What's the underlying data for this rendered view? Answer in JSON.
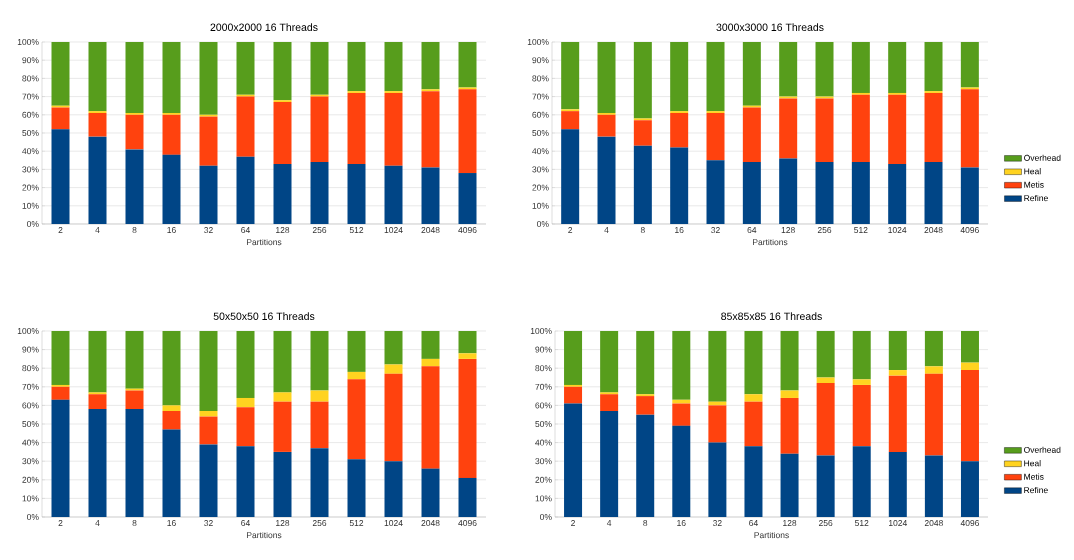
{
  "chart_data": [
    {
      "type": "bar",
      "stacked": true,
      "title": "2000x2000 16 Threads",
      "xlabel": "Partitions",
      "categories": [
        "2",
        "4",
        "8",
        "16",
        "32",
        "64",
        "128",
        "256",
        "512",
        "1024",
        "2048",
        "4096"
      ],
      "ylim": [
        0,
        100
      ],
      "yticks": [
        {
          "value": 0,
          "label": "0%"
        },
        {
          "value": 10,
          "label": "10%"
        },
        {
          "value": 20,
          "label": "20%"
        },
        {
          "value": 30,
          "label": "30%"
        },
        {
          "value": 40,
          "label": "40%"
        },
        {
          "value": 50,
          "label": "50%"
        },
        {
          "value": 60,
          "label": "60%"
        },
        {
          "value": 70,
          "label": "70%"
        },
        {
          "value": 80,
          "label": "80%"
        },
        {
          "value": 90,
          "label": "90%"
        },
        {
          "value": 100,
          "label": "100%"
        }
      ],
      "grid": "y",
      "series": [
        {
          "color": "#004586",
          "values": [
            52,
            48,
            41,
            38,
            32,
            37,
            33,
            34,
            33,
            32,
            31,
            28
          ]
        },
        {
          "color": "#ff420e",
          "values": [
            12,
            13,
            19,
            22,
            27,
            33,
            34,
            36,
            39,
            40,
            42,
            46
          ]
        },
        {
          "color": "#ffd320",
          "values": [
            1,
            1,
            1,
            1,
            1,
            1,
            1,
            1,
            1,
            1,
            1,
            1
          ]
        },
        {
          "color": "#579d1c",
          "values": [
            35,
            38,
            39,
            39,
            40,
            29,
            32,
            29,
            27,
            27,
            26,
            25
          ]
        }
      ]
    },
    {
      "type": "bar",
      "stacked": true,
      "title": "3000x3000 16 Threads",
      "xlabel": "Partitions",
      "categories": [
        "2",
        "4",
        "8",
        "16",
        "32",
        "64",
        "128",
        "256",
        "512",
        "1024",
        "2048",
        "4096"
      ],
      "ylim": [
        0,
        100
      ],
      "yticks": [
        {
          "value": 0,
          "label": "0%"
        },
        {
          "value": 10,
          "label": "10%"
        },
        {
          "value": 20,
          "label": "20%"
        },
        {
          "value": 30,
          "label": "30%"
        },
        {
          "value": 40,
          "label": "40%"
        },
        {
          "value": 50,
          "label": "50%"
        },
        {
          "value": 60,
          "label": "60%"
        },
        {
          "value": 70,
          "label": "70%"
        },
        {
          "value": 80,
          "label": "80%"
        },
        {
          "value": 90,
          "label": "90%"
        },
        {
          "value": 100,
          "label": "100%"
        }
      ],
      "grid": "y",
      "legend": "right",
      "series": [
        {
          "name": "Refine",
          "color": "#004586",
          "values": [
            52,
            48,
            43,
            42,
            35,
            34,
            36,
            34,
            34,
            33,
            34,
            31
          ]
        },
        {
          "name": "Metis",
          "color": "#ff420e",
          "values": [
            10,
            12,
            14,
            19,
            26,
            30,
            33,
            35,
            37,
            38,
            38,
            43
          ]
        },
        {
          "name": "Heal",
          "color": "#ffd320",
          "values": [
            1,
            1,
            1,
            1,
            1,
            1,
            1,
            1,
            1,
            1,
            1,
            1
          ]
        },
        {
          "name": "Overhead",
          "color": "#579d1c",
          "values": [
            37,
            39,
            42,
            38,
            38,
            35,
            30,
            30,
            28,
            28,
            27,
            25
          ]
        }
      ]
    },
    {
      "type": "bar",
      "stacked": true,
      "title": "50x50x50 16 Threads",
      "xlabel": "Partitions",
      "categories": [
        "2",
        "4",
        "8",
        "16",
        "32",
        "64",
        "128",
        "256",
        "512",
        "1024",
        "2048",
        "4096"
      ],
      "ylim": [
        0,
        100
      ],
      "yticks": [
        {
          "value": 0,
          "label": "0%"
        },
        {
          "value": 10,
          "label": "10%"
        },
        {
          "value": 20,
          "label": "20%"
        },
        {
          "value": 30,
          "label": "30%"
        },
        {
          "value": 40,
          "label": "40%"
        },
        {
          "value": 50,
          "label": "50%"
        },
        {
          "value": 60,
          "label": "60%"
        },
        {
          "value": 70,
          "label": "70%"
        },
        {
          "value": 80,
          "label": "80%"
        },
        {
          "value": 90,
          "label": "90%"
        },
        {
          "value": 100,
          "label": "100%"
        }
      ],
      "grid": "y",
      "series": [
        {
          "color": "#004586",
          "values": [
            63,
            58,
            58,
            47,
            39,
            38,
            35,
            37,
            31,
            30,
            26,
            21
          ]
        },
        {
          "color": "#ff420e",
          "values": [
            7,
            8,
            10,
            10,
            15,
            21,
            27,
            25,
            43,
            47,
            55,
            64
          ]
        },
        {
          "color": "#ffd320",
          "values": [
            1,
            1,
            1,
            3,
            3,
            5,
            5,
            6,
            4,
            5,
            4,
            3
          ]
        },
        {
          "color": "#579d1c",
          "values": [
            29,
            33,
            31,
            40,
            43,
            36,
            33,
            32,
            22,
            18,
            15,
            12
          ]
        }
      ]
    },
    {
      "type": "bar",
      "stacked": true,
      "title": "85x85x85 16 Threads",
      "xlabel": "Partitions",
      "categories": [
        "2",
        "4",
        "8",
        "16",
        "32",
        "64",
        "128",
        "256",
        "512",
        "1024",
        "2048",
        "4096"
      ],
      "ylim": [
        0,
        100
      ],
      "yticks": [
        {
          "value": 0,
          "label": "0%"
        },
        {
          "value": 10,
          "label": "10%"
        },
        {
          "value": 20,
          "label": "20%"
        },
        {
          "value": 30,
          "label": "30%"
        },
        {
          "value": 40,
          "label": "40%"
        },
        {
          "value": 50,
          "label": "50%"
        },
        {
          "value": 60,
          "label": "60%"
        },
        {
          "value": 70,
          "label": "70%"
        },
        {
          "value": 80,
          "label": "80%"
        },
        {
          "value": 90,
          "label": "90%"
        },
        {
          "value": 100,
          "label": "100%"
        }
      ],
      "grid": "y",
      "legend": "right",
      "series": [
        {
          "name": "Refine",
          "color": "#004586",
          "values": [
            61,
            57,
            55,
            49,
            40,
            38,
            34,
            33,
            38,
            35,
            33,
            30
          ]
        },
        {
          "name": "Metis",
          "color": "#ff420e",
          "values": [
            9,
            9,
            10,
            12,
            20,
            24,
            30,
            39,
            33,
            41,
            44,
            49
          ]
        },
        {
          "name": "Heal",
          "color": "#ffd320",
          "values": [
            1,
            1,
            1,
            2,
            2,
            4,
            4,
            3,
            3,
            3,
            4,
            4
          ]
        },
        {
          "name": "Overhead",
          "color": "#579d1c",
          "values": [
            29,
            33,
            34,
            37,
            38,
            34,
            32,
            25,
            26,
            21,
            19,
            17
          ]
        }
      ]
    }
  ]
}
